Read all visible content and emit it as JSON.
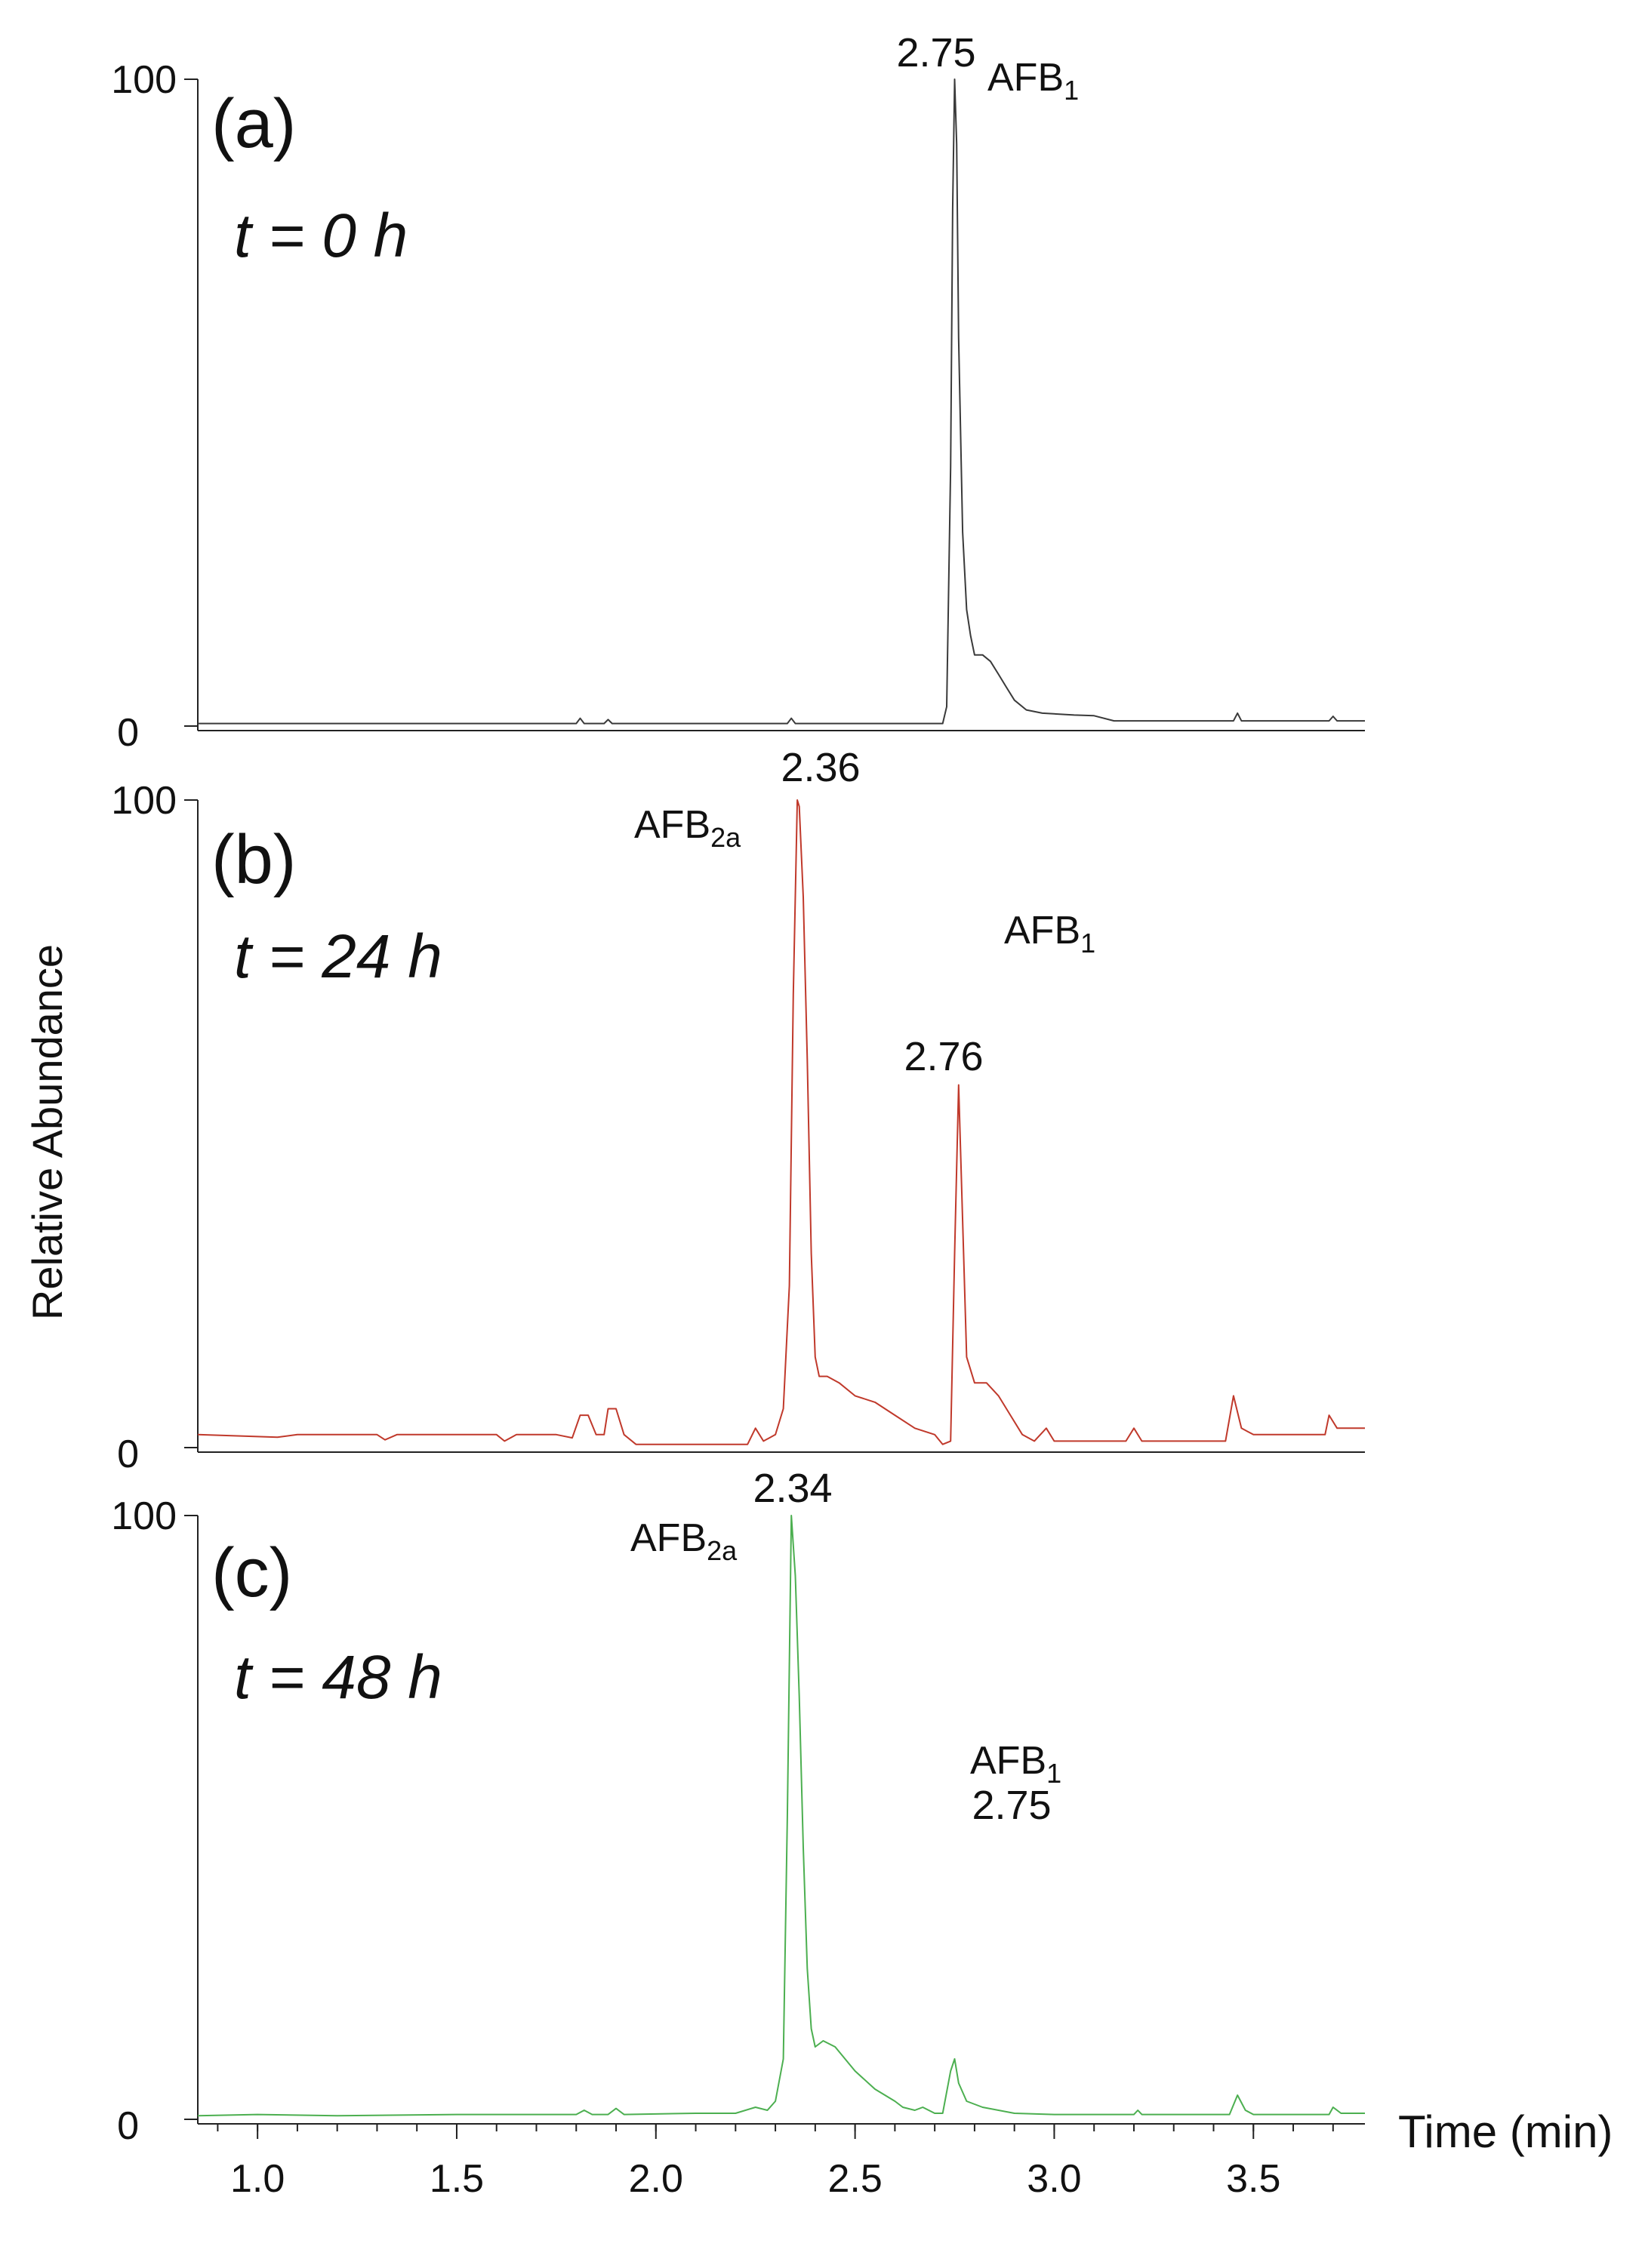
{
  "chart_data": {
    "type": "line",
    "ylabel": "Relative Abundance",
    "xlabel": "Time (min)",
    "xlim": [
      0.85,
      3.78
    ],
    "ylim": [
      0,
      100
    ],
    "xticks": [
      "1.0",
      "1.5",
      "2.0",
      "2.5",
      "3.0",
      "3.5"
    ],
    "yticks": [
      "0",
      "100"
    ],
    "grid": false,
    "panels": [
      {
        "letter": "(a)",
        "time_label": "t = 0 h",
        "color": "#3a3a3a",
        "peaks": [
          {
            "rt": "2.75",
            "x": 2.75,
            "y": 100,
            "compound": "AFB",
            "subscript": "1"
          }
        ],
        "series": [
          [
            0.85,
            0.4
          ],
          [
            1.8,
            0.4
          ],
          [
            1.81,
            1.2
          ],
          [
            1.82,
            0.4
          ],
          [
            1.87,
            0.4
          ],
          [
            1.88,
            1.0
          ],
          [
            1.89,
            0.4
          ],
          [
            2.33,
            0.4
          ],
          [
            2.34,
            1.2
          ],
          [
            2.35,
            0.4
          ],
          [
            2.72,
            0.4
          ],
          [
            2.73,
            3
          ],
          [
            2.74,
            40
          ],
          [
            2.745,
            80
          ],
          [
            2.75,
            100
          ],
          [
            2.755,
            90
          ],
          [
            2.76,
            60
          ],
          [
            2.77,
            30
          ],
          [
            2.78,
            18
          ],
          [
            2.79,
            14
          ],
          [
            2.8,
            11
          ],
          [
            2.82,
            11
          ],
          [
            2.84,
            10
          ],
          [
            2.86,
            8
          ],
          [
            2.88,
            6
          ],
          [
            2.9,
            4
          ],
          [
            2.93,
            2.5
          ],
          [
            2.97,
            2
          ],
          [
            3.05,
            1.7
          ],
          [
            3.1,
            1.6
          ],
          [
            3.15,
            0.8
          ],
          [
            3.45,
            0.8
          ],
          [
            3.46,
            2
          ],
          [
            3.47,
            0.8
          ],
          [
            3.69,
            0.8
          ],
          [
            3.7,
            1.5
          ],
          [
            3.71,
            0.8
          ],
          [
            3.78,
            0.8
          ]
        ]
      },
      {
        "letter": "(b)",
        "time_label": "t = 24 h",
        "color": "#c0392b",
        "peaks": [
          {
            "rt": "2.36",
            "x": 2.36,
            "y": 100,
            "compound": "AFB",
            "subscript": "2a"
          },
          {
            "rt": "2.76",
            "x": 2.76,
            "y": 56,
            "compound": "AFB",
            "subscript": "1"
          }
        ],
        "series": [
          [
            0.85,
            2
          ],
          [
            1.05,
            1.6
          ],
          [
            1.1,
            2
          ],
          [
            1.3,
            2
          ],
          [
            1.32,
            1.2
          ],
          [
            1.35,
            2
          ],
          [
            1.6,
            2
          ],
          [
            1.62,
            1
          ],
          [
            1.65,
            2
          ],
          [
            1.75,
            2
          ],
          [
            1.79,
            1.5
          ],
          [
            1.81,
            5
          ],
          [
            1.83,
            5
          ],
          [
            1.85,
            2
          ],
          [
            1.87,
            2
          ],
          [
            1.88,
            6
          ],
          [
            1.9,
            6
          ],
          [
            1.92,
            2
          ],
          [
            1.95,
            0.5
          ],
          [
            2.23,
            0.5
          ],
          [
            2.25,
            3
          ],
          [
            2.27,
            1
          ],
          [
            2.3,
            2
          ],
          [
            2.32,
            6
          ],
          [
            2.335,
            25
          ],
          [
            2.345,
            70
          ],
          [
            2.355,
            100
          ],
          [
            2.36,
            99
          ],
          [
            2.37,
            85
          ],
          [
            2.38,
            60
          ],
          [
            2.39,
            30
          ],
          [
            2.4,
            14
          ],
          [
            2.41,
            11
          ],
          [
            2.43,
            11
          ],
          [
            2.46,
            10
          ],
          [
            2.5,
            8
          ],
          [
            2.55,
            7
          ],
          [
            2.6,
            5
          ],
          [
            2.65,
            3
          ],
          [
            2.7,
            2
          ],
          [
            2.72,
            0.5
          ],
          [
            2.74,
            1
          ],
          [
            2.75,
            30
          ],
          [
            2.76,
            56
          ],
          [
            2.77,
            35
          ],
          [
            2.78,
            14
          ],
          [
            2.8,
            10
          ],
          [
            2.83,
            10
          ],
          [
            2.86,
            8
          ],
          [
            2.89,
            5
          ],
          [
            2.92,
            2
          ],
          [
            2.95,
            1
          ],
          [
            2.98,
            3
          ],
          [
            3.0,
            1
          ],
          [
            3.05,
            1
          ],
          [
            3.18,
            1
          ],
          [
            3.2,
            3
          ],
          [
            3.22,
            1
          ],
          [
            3.43,
            1
          ],
          [
            3.45,
            8
          ],
          [
            3.47,
            3
          ],
          [
            3.5,
            2
          ],
          [
            3.6,
            2
          ],
          [
            3.68,
            2
          ],
          [
            3.69,
            5
          ],
          [
            3.71,
            3
          ],
          [
            3.78,
            3
          ]
        ]
      },
      {
        "letter": "(c)",
        "time_label": "t = 48 h",
        "color": "#4caf50",
        "peaks": [
          {
            "rt": "2.34",
            "x": 2.34,
            "y": 100,
            "compound": "AFB",
            "subscript": "2a"
          },
          {
            "rt": "2.75",
            "x": 2.75,
            "y": 10,
            "compound": "AFB",
            "subscript": "1"
          }
        ],
        "series": [
          [
            0.85,
            0.6
          ],
          [
            1.0,
            0.8
          ],
          [
            1.2,
            0.6
          ],
          [
            1.5,
            0.8
          ],
          [
            1.8,
            0.8
          ],
          [
            1.82,
            1.5
          ],
          [
            1.84,
            0.8
          ],
          [
            1.88,
            0.8
          ],
          [
            1.9,
            1.8
          ],
          [
            1.92,
            0.8
          ],
          [
            2.1,
            1
          ],
          [
            2.2,
            1
          ],
          [
            2.25,
            2
          ],
          [
            2.28,
            1.5
          ],
          [
            2.3,
            3
          ],
          [
            2.32,
            10
          ],
          [
            2.33,
            50
          ],
          [
            2.34,
            100
          ],
          [
            2.35,
            90
          ],
          [
            2.36,
            70
          ],
          [
            2.37,
            45
          ],
          [
            2.38,
            25
          ],
          [
            2.39,
            15
          ],
          [
            2.4,
            12
          ],
          [
            2.42,
            13
          ],
          [
            2.45,
            12
          ],
          [
            2.5,
            8
          ],
          [
            2.55,
            5
          ],
          [
            2.6,
            3
          ],
          [
            2.62,
            2
          ],
          [
            2.65,
            1.5
          ],
          [
            2.67,
            2
          ],
          [
            2.7,
            1
          ],
          [
            2.72,
            1
          ],
          [
            2.74,
            8
          ],
          [
            2.75,
            10
          ],
          [
            2.76,
            6
          ],
          [
            2.78,
            3
          ],
          [
            2.82,
            2
          ],
          [
            2.9,
            1
          ],
          [
            3.0,
            0.8
          ],
          [
            3.2,
            0.8
          ],
          [
            3.21,
            1.5
          ],
          [
            3.22,
            0.8
          ],
          [
            3.44,
            0.8
          ],
          [
            3.46,
            4
          ],
          [
            3.48,
            1.5
          ],
          [
            3.5,
            0.8
          ],
          [
            3.69,
            0.8
          ],
          [
            3.7,
            2
          ],
          [
            3.72,
            1
          ],
          [
            3.78,
            1
          ]
        ]
      }
    ]
  }
}
